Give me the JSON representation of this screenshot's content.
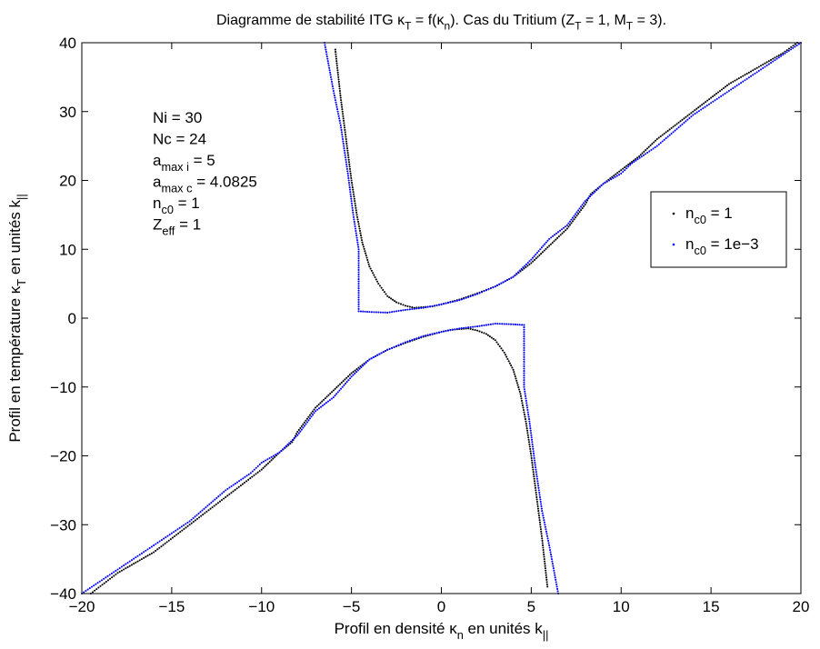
{
  "chart_data": {
    "type": "scatter",
    "title": {
      "parts": [
        {
          "text": "Diagramme de stabilité ITG κ"
        },
        {
          "text": "T",
          "sub": true
        },
        {
          "text": " = f(κ"
        },
        {
          "text": "n",
          "sub": true
        },
        {
          "text": "). Cas du Tritium (Z"
        },
        {
          "text": "T",
          "sub": true
        },
        {
          "text": " = 1, M"
        },
        {
          "text": "T",
          "sub": true
        },
        {
          "text": " = 3)."
        }
      ]
    },
    "xlabel": {
      "parts": [
        {
          "text": "Profil en densité κ"
        },
        {
          "text": "n",
          "sub": true
        },
        {
          "text": " en unités k"
        },
        {
          "text": "||",
          "sub": true
        }
      ]
    },
    "ylabel": {
      "parts": [
        {
          "text": "Profil en température κ"
        },
        {
          "text": "T",
          "sub": true
        },
        {
          "text": " en unités k"
        },
        {
          "text": "||",
          "sub": true
        }
      ]
    },
    "xlim": [
      -20,
      20
    ],
    "ylim": [
      -40,
      40
    ],
    "xticks": [
      -20,
      -15,
      -10,
      -5,
      0,
      5,
      10,
      15,
      20
    ],
    "yticks": [
      -40,
      -30,
      -20,
      -10,
      0,
      10,
      20,
      30,
      40
    ],
    "xtick_labels": [
      "−20",
      "−15",
      "−10",
      "−5",
      "0",
      "5",
      "10",
      "15",
      "20"
    ],
    "ytick_labels": [
      "−40",
      "−30",
      "−20",
      "−10",
      "0",
      "10",
      "20",
      "30",
      "40"
    ],
    "grid": false,
    "legend_position": "right",
    "annotation": [
      [
        {
          "text": "Ni = 30"
        }
      ],
      [
        {
          "text": "Nc = 24"
        }
      ],
      [
        {
          "text": "a"
        },
        {
          "text": "max i",
          "sub": true
        },
        {
          "text": " = 5"
        }
      ],
      [
        {
          "text": "a"
        },
        {
          "text": "max c",
          "sub": true
        },
        {
          "text": " = 4.0825"
        }
      ],
      [
        {
          "text": "n"
        },
        {
          "text": "c0",
          "sub": true
        },
        {
          "text": " = 1"
        }
      ],
      [
        {
          "text": "Z"
        },
        {
          "text": "eff",
          "sub": true
        },
        {
          "text": " = 1"
        }
      ]
    ],
    "series": [
      {
        "name": "n_c0 = 1",
        "legend_parts": [
          {
            "text": "n"
          },
          {
            "text": "c0",
            "sub": true
          },
          {
            "text": " = 1"
          }
        ],
        "color": "#000000",
        "marker": "dot",
        "branches": [
          {
            "points": [
              [
                -5.9,
                39
              ],
              [
                -5.6,
                32
              ],
              [
                -5.3,
                26
              ],
              [
                -5.0,
                20
              ],
              [
                -4.7,
                15
              ],
              [
                -4.4,
                11
              ],
              [
                -4.0,
                7.5
              ],
              [
                -3.5,
                5
              ],
              [
                -3.0,
                3.2
              ],
              [
                -2.5,
                2.3
              ],
              [
                -2,
                1.8
              ],
              [
                -1.5,
                1.5
              ],
              [
                -1,
                1.6
              ],
              [
                -0.5,
                1.7
              ],
              [
                0,
                2
              ],
              [
                1,
                2.7
              ],
              [
                2,
                3.6
              ],
              [
                3,
                4.6
              ],
              [
                4,
                6
              ],
              [
                5,
                8
              ],
              [
                6,
                10.5
              ],
              [
                7,
                13
              ],
              [
                8,
                16.5
              ],
              [
                8.3,
                18
              ],
              [
                9,
                19.5
              ],
              [
                10,
                21.5
              ],
              [
                11,
                23.5
              ],
              [
                12,
                26
              ],
              [
                13,
                28
              ],
              [
                14,
                30
              ],
              [
                15,
                32
              ],
              [
                16,
                34
              ],
              [
                17,
                35.5
              ],
              [
                18,
                37
              ],
              [
                19,
                38.5
              ],
              [
                19.8,
                40
              ]
            ]
          },
          {
            "points": [
              [
                -19.5,
                -40
              ],
              [
                -18,
                -37
              ],
              [
                -16,
                -34
              ],
              [
                -14,
                -30
              ],
              [
                -12,
                -26
              ],
              [
                -10,
                -22
              ],
              [
                -9,
                -19.5
              ],
              [
                -8.3,
                -18
              ],
              [
                -8,
                -16.5
              ],
              [
                -7,
                -13
              ],
              [
                -6,
                -10.5
              ],
              [
                -5,
                -8
              ],
              [
                -4,
                -6
              ],
              [
                -3,
                -4.6
              ],
              [
                -2,
                -3.6
              ],
              [
                -1,
                -2.7
              ],
              [
                0,
                -2
              ],
              [
                0.5,
                -1.7
              ],
              [
                1,
                -1.6
              ],
              [
                1.5,
                -1.5
              ],
              [
                2,
                -1.8
              ],
              [
                2.5,
                -2.3
              ],
              [
                3,
                -3.2
              ],
              [
                3.5,
                -5
              ],
              [
                4,
                -7.5
              ],
              [
                4.4,
                -11
              ],
              [
                4.7,
                -15
              ],
              [
                5,
                -20
              ],
              [
                5.3,
                -26
              ],
              [
                5.6,
                -32
              ],
              [
                5.9,
                -39
              ]
            ]
          }
        ]
      },
      {
        "name": "n_c0 = 1e-3",
        "legend_parts": [
          {
            "text": "n"
          },
          {
            "text": "c0",
            "sub": true
          },
          {
            "text": " = 1e−3"
          }
        ],
        "color": "#0000ff",
        "marker": "dot",
        "branches": [
          {
            "points": [
              [
                -6.5,
                40
              ],
              [
                -6,
                33
              ],
              [
                -5.6,
                28
              ],
              [
                -5.2,
                21
              ],
              [
                -4.9,
                15
              ],
              [
                -4.6,
                10
              ],
              [
                -4.6,
                5
              ],
              [
                -4.6,
                1
              ],
              [
                -4,
                0.9
              ],
              [
                -3,
                0.8
              ],
              [
                -2,
                1.2
              ],
              [
                -1,
                1.5
              ],
              [
                0,
                2
              ],
              [
                1,
                2.6
              ],
              [
                2,
                3.5
              ],
              [
                3,
                4.6
              ],
              [
                4,
                6
              ],
              [
                5,
                8.5
              ],
              [
                6,
                11.5
              ],
              [
                7,
                13.5
              ],
              [
                8,
                17
              ],
              [
                9,
                19.5
              ],
              [
                10,
                21
              ],
              [
                10.6,
                22.5
              ],
              [
                12,
                25
              ],
              [
                14,
                29.5
              ],
              [
                16,
                33
              ],
              [
                18,
                36.5
              ],
              [
                20,
                40
              ]
            ]
          },
          {
            "points": [
              [
                -20,
                -40
              ],
              [
                -18,
                -36.5
              ],
              [
                -16,
                -33
              ],
              [
                -14,
                -29.5
              ],
              [
                -12,
                -25
              ],
              [
                -10.6,
                -22.5
              ],
              [
                -10,
                -21
              ],
              [
                -9,
                -19.5
              ],
              [
                -8,
                -17
              ],
              [
                -7,
                -13.5
              ],
              [
                -6,
                -11.5
              ],
              [
                -5,
                -8.5
              ],
              [
                -4,
                -6
              ],
              [
                -3,
                -4.6
              ],
              [
                -2,
                -3.5
              ],
              [
                -1,
                -2.6
              ],
              [
                0,
                -2
              ],
              [
                1,
                -1.5
              ],
              [
                2,
                -1.2
              ],
              [
                3,
                -0.8
              ],
              [
                4,
                -0.9
              ],
              [
                4.6,
                -1
              ],
              [
                4.6,
                -5
              ],
              [
                4.6,
                -10
              ],
              [
                4.9,
                -15
              ],
              [
                5.2,
                -21
              ],
              [
                5.6,
                -28
              ],
              [
                6,
                -33
              ],
              [
                6.5,
                -40
              ]
            ]
          }
        ]
      }
    ]
  }
}
